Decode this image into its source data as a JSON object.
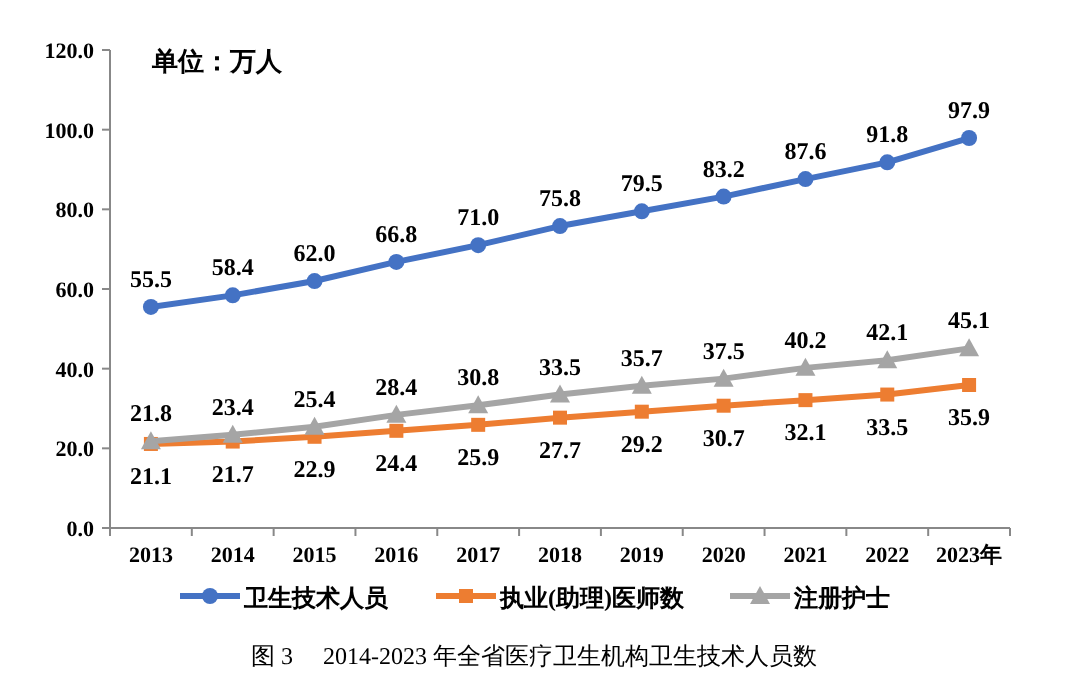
{
  "chart_data": {
    "type": "line",
    "title": "图 3　 2014-2023 年全省医疗卫生机构卫生技术人员数",
    "annotations": [
      "单位：万人"
    ],
    "categories": [
      "2013",
      "2014",
      "2015",
      "2016",
      "2017",
      "2018",
      "2019",
      "2020",
      "2021",
      "2022",
      "2023年"
    ],
    "series": [
      {
        "name": "卫生技术人员",
        "color": "#4472c4",
        "marker": "circle",
        "values": [
          55.5,
          58.4,
          62.0,
          66.8,
          71.0,
          75.8,
          79.5,
          83.2,
          87.6,
          91.8,
          97.9
        ],
        "value_labels": [
          "55.5",
          "58.4",
          "62.0",
          "66.8",
          "71.0",
          "75.8",
          "79.5",
          "83.2",
          "87.6",
          "91.8",
          "97.9"
        ]
      },
      {
        "name": "执业(助理)医师数",
        "color": "#ed7d31",
        "marker": "square",
        "values": [
          21.1,
          21.7,
          22.9,
          24.4,
          25.9,
          27.7,
          29.2,
          30.7,
          32.1,
          33.5,
          35.9
        ],
        "value_labels": [
          "21.1",
          "21.7",
          "22.9",
          "24.4",
          "25.9",
          "27.7",
          "29.2",
          "30.7",
          "32.1",
          "33.5",
          "35.9"
        ]
      },
      {
        "name": "注册护士",
        "color": "#a5a5a5",
        "marker": "triangle",
        "values": [
          21.8,
          23.4,
          25.4,
          28.4,
          30.8,
          33.5,
          35.7,
          37.5,
          40.2,
          42.1,
          45.1
        ],
        "value_labels": [
          "21.8",
          "23.4",
          "25.4",
          "28.4",
          "30.8",
          "33.5",
          "35.7",
          "37.5",
          "40.2",
          "42.1",
          "45.1"
        ]
      }
    ],
    "ylim": [
      0,
      120
    ],
    "yticks": [
      {
        "value": 0,
        "label": "0.0"
      },
      {
        "value": 20,
        "label": "20.0"
      },
      {
        "value": 40,
        "label": "40.0"
      },
      {
        "value": 60,
        "label": "60.0"
      },
      {
        "value": 80,
        "label": "80.0"
      },
      {
        "value": 100,
        "label": "100.0"
      },
      {
        "value": 120,
        "label": "120.0"
      }
    ],
    "legend": "bottom",
    "grid": false,
    "line_style": "solid"
  }
}
